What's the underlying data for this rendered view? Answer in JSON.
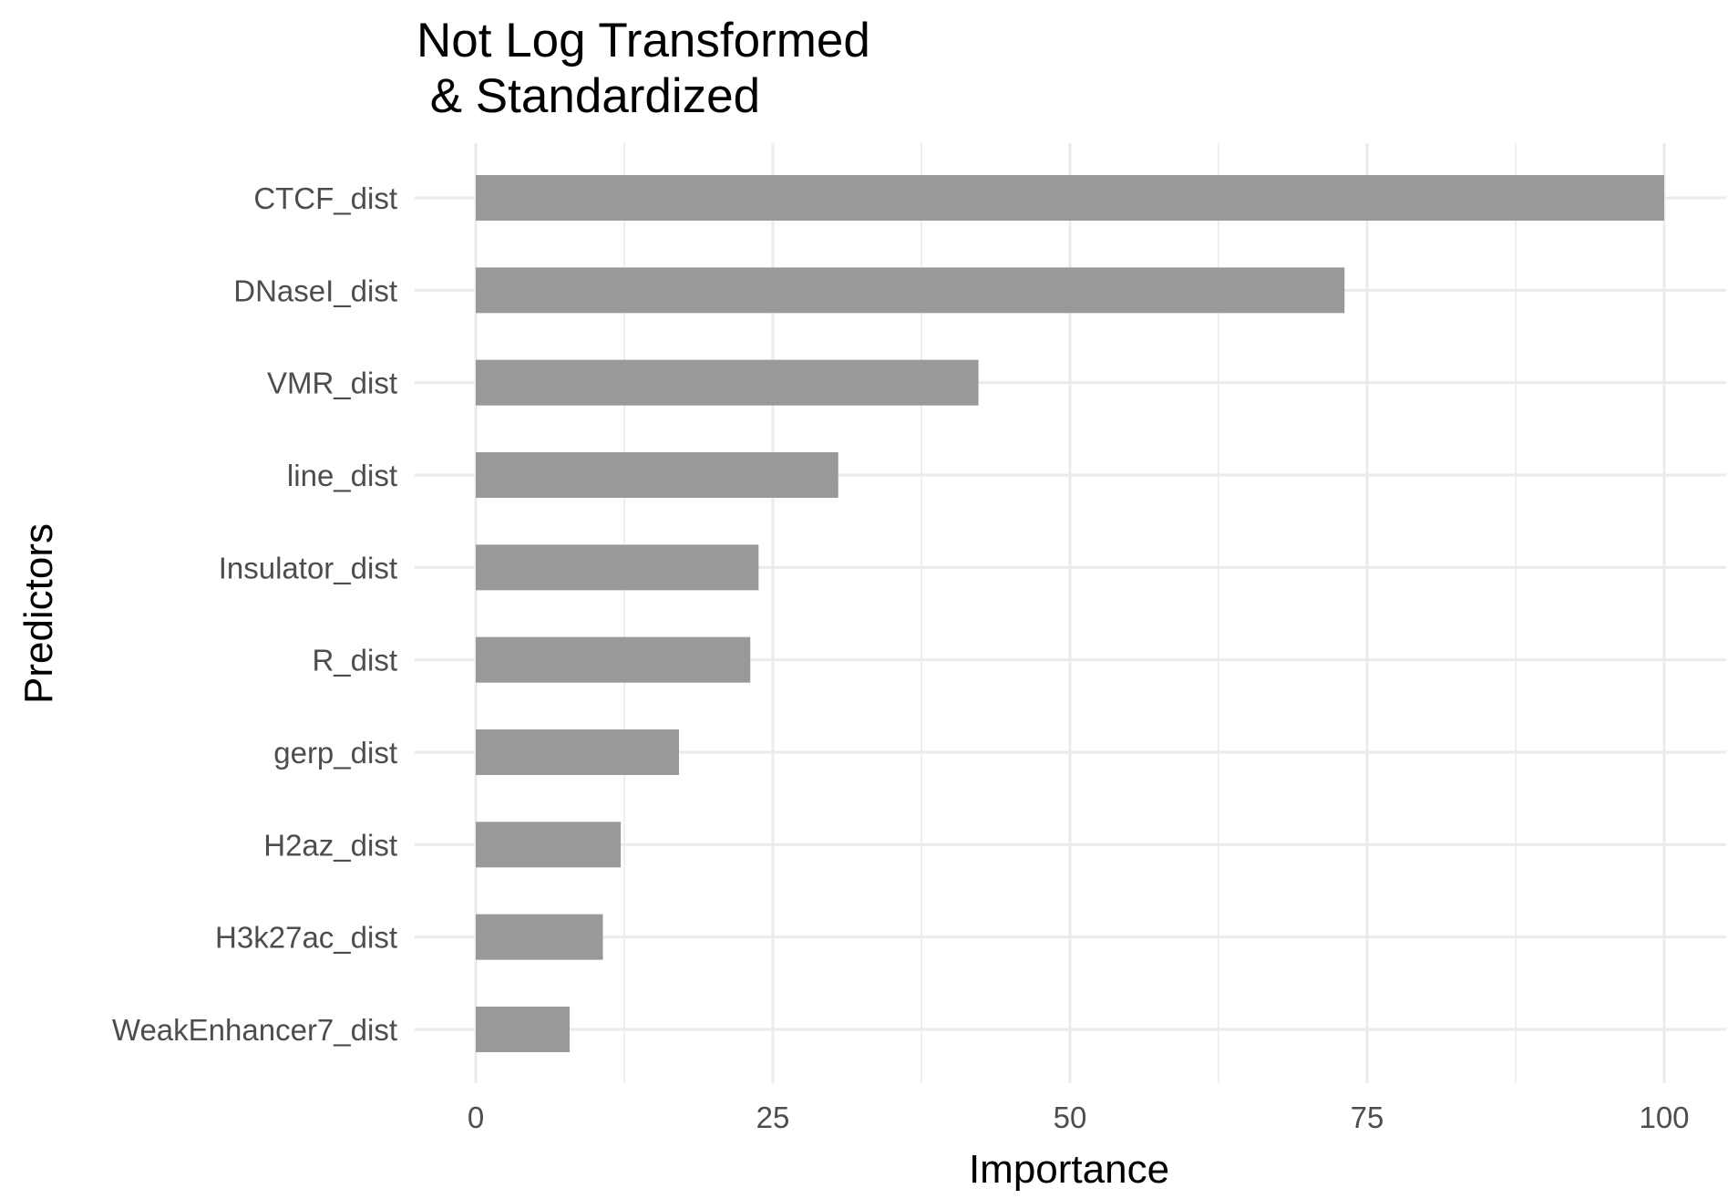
{
  "chart_data": {
    "type": "bar",
    "orientation": "horizontal",
    "title_lines": [
      "Not Log Transformed",
      " & Standardized"
    ],
    "xlabel": "Importance",
    "ylabel": "Predictors",
    "categories": [
      "CTCF_dist",
      "DNaseI_dist",
      "VMR_dist",
      "line_dist",
      "Insulator_dist",
      "R_dist",
      "gerp_dist",
      "H2az_dist",
      "H3k27ac_dist",
      "WeakEnhancer7_dist"
    ],
    "values": [
      100,
      73.1,
      42.3,
      30.5,
      23.8,
      23.1,
      17.1,
      12.2,
      10.7,
      7.9
    ],
    "xlim": [
      -4,
      105
    ],
    "xticks": [
      0,
      25,
      50,
      75,
      100
    ],
    "xtick_labels": [
      "0",
      "25",
      "50",
      "75",
      "100"
    ],
    "grid": true,
    "legend": "none",
    "bar_color": "#999999",
    "grid_color": "#ebebeb"
  }
}
